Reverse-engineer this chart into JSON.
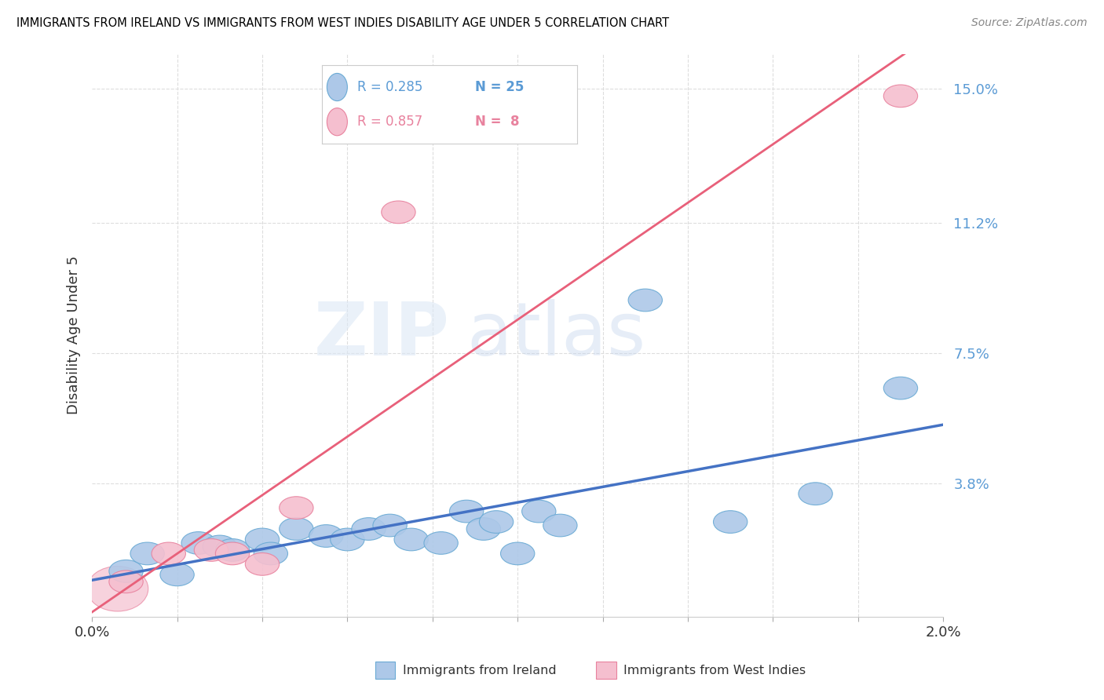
{
  "title": "IMMIGRANTS FROM IRELAND VS IMMIGRANTS FROM WEST INDIES DISABILITY AGE UNDER 5 CORRELATION CHART",
  "source": "Source: ZipAtlas.com",
  "ylabel": "Disability Age Under 5",
  "legend_R1": "R = 0.285",
  "legend_N1": "N = 25",
  "legend_R2": "R = 0.857",
  "legend_N2": "N =  8",
  "ireland_color": "#adc8e8",
  "ireland_edge_color": "#6aaad4",
  "west_indies_color": "#f5bfcf",
  "west_indies_edge_color": "#e8829e",
  "line_ireland_color": "#4472c4",
  "line_west_indies_color": "#e8607a",
  "watermark_zip": "ZIP",
  "watermark_atlas": "atlas",
  "ireland_x": [
    0.0008,
    0.0013,
    0.002,
    0.0025,
    0.003,
    0.0033,
    0.004,
    0.0042,
    0.0048,
    0.0055,
    0.006,
    0.0065,
    0.007,
    0.0075,
    0.0082,
    0.0088,
    0.0092,
    0.0095,
    0.01,
    0.0105,
    0.011,
    0.013,
    0.015,
    0.017,
    0.019
  ],
  "ireland_y": [
    0.013,
    0.018,
    0.012,
    0.021,
    0.02,
    0.019,
    0.022,
    0.018,
    0.025,
    0.023,
    0.022,
    0.025,
    0.026,
    0.022,
    0.021,
    0.03,
    0.025,
    0.027,
    0.018,
    0.03,
    0.026,
    0.09,
    0.027,
    0.035,
    0.065
  ],
  "west_indies_x": [
    0.0008,
    0.0018,
    0.0028,
    0.0033,
    0.004,
    0.0048,
    0.0072,
    0.019
  ],
  "west_indies_y": [
    0.01,
    0.018,
    0.019,
    0.018,
    0.015,
    0.031,
    0.115,
    0.148
  ],
  "xmin": 0.0,
  "xmax": 0.02,
  "ymin": 0.0,
  "ymax": 0.16,
  "ytick_vals": [
    0.038,
    0.075,
    0.112,
    0.15
  ],
  "ytick_labels": [
    "3.8%",
    "7.5%",
    "11.2%",
    "15.0%"
  ],
  "background_color": "#ffffff",
  "axis_label_color": "#5b9bd5",
  "title_color": "#000000"
}
